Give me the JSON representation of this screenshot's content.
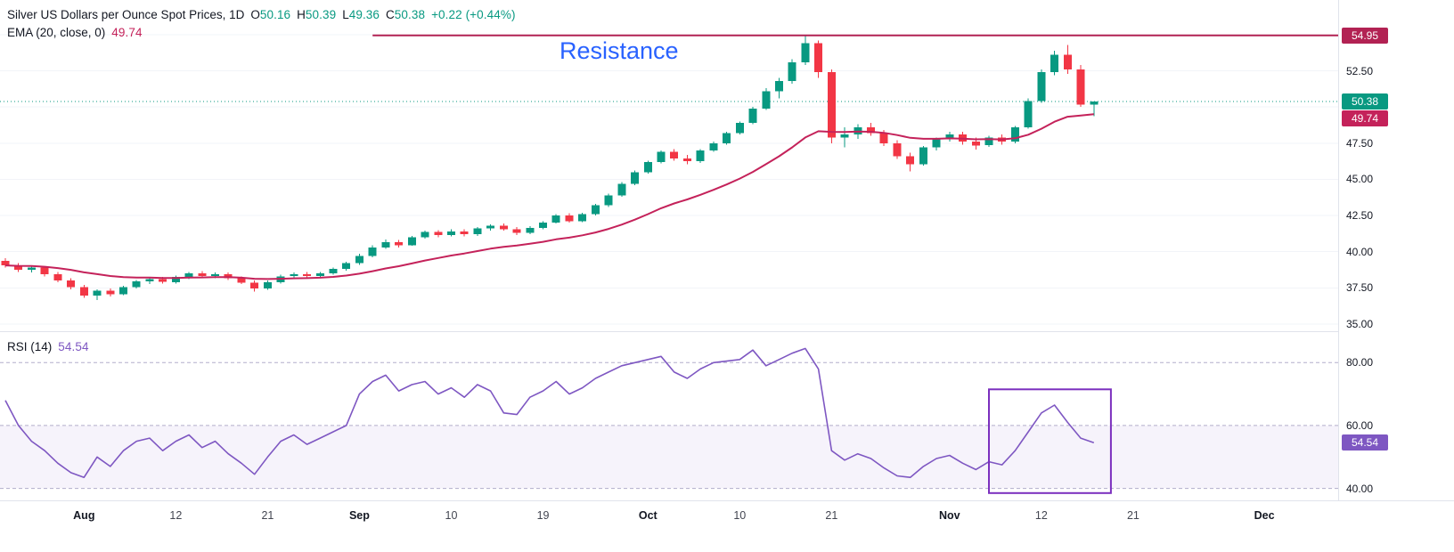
{
  "legend": {
    "title": "Silver US Dollars per Ounce Spot Prices, 1D",
    "ohlc": {
      "o_key": "O",
      "o": "50.16",
      "h_key": "H",
      "h": "50.39",
      "l_key": "L",
      "l": "49.36",
      "c_key": "C",
      "c": "50.38",
      "change": "+0.22 (+0.44%)"
    },
    "ema_label": "EMA (20, close, 0)",
    "ema_value": "49.74",
    "rsi_label": "RSI (14)",
    "rsi_value": "54.54"
  },
  "colors": {
    "up": "#089981",
    "down": "#f23645",
    "ema": "#c4225a",
    "resistance_line": "#b22253",
    "resistance_text": "#2962ff",
    "last_price": "#089981",
    "rsi": "#7e57c2",
    "rsi_band": "rgba(126,87,194,0.07)",
    "rsi_level": "#b2aecb",
    "box": "#7b2fbe",
    "grid": "#f2f4f8",
    "axis_text": "#131722"
  },
  "chart_data": {
    "type": "candlestick",
    "title": "Silver US Dollars per Ounce Spot Prices, 1D",
    "timeframe": "1D",
    "price_panel": {
      "ylim": [
        34.5,
        57.4
      ],
      "grid_values": [
        35,
        37.5,
        40,
        42.5,
        45,
        47.5,
        50,
        52.5,
        55
      ],
      "axis_labels": [
        "52.50",
        "47.50",
        "45.00",
        "42.50",
        "40.00",
        "37.50",
        "35.00"
      ],
      "badges": [
        {
          "label": "54.95",
          "value": 54.95,
          "color": "#b22253"
        },
        {
          "label": "50.38",
          "value": 50.38,
          "color": "#089981"
        },
        {
          "label": "49.74",
          "value": 49.74,
          "color": "#c4225a"
        }
      ],
      "last_price": {
        "value": 50.38
      },
      "ema": {
        "period": 20,
        "source": "close",
        "offset": 0,
        "value": 49.74
      },
      "resistance": {
        "label": "Resistance",
        "value": 54.95,
        "start_index": 28
      },
      "candles": [
        [
          39.35,
          39.55,
          38.9,
          39.05
        ],
        [
          39.05,
          39.2,
          38.6,
          38.75
        ],
        [
          38.75,
          39.0,
          38.55,
          38.9
        ],
        [
          38.9,
          39.0,
          38.3,
          38.45
        ],
        [
          38.45,
          38.6,
          37.9,
          38.0
        ],
        [
          38.0,
          38.15,
          37.4,
          37.55
        ],
        [
          37.55,
          37.7,
          36.8,
          36.95
        ],
        [
          36.95,
          37.4,
          36.65,
          37.3
        ],
        [
          37.3,
          37.45,
          36.9,
          37.05
        ],
        [
          37.05,
          37.65,
          37.0,
          37.55
        ],
        [
          37.55,
          38.05,
          37.45,
          37.95
        ],
        [
          37.95,
          38.25,
          37.75,
          38.1
        ],
        [
          38.1,
          38.25,
          37.8,
          37.9
        ],
        [
          37.9,
          38.35,
          37.8,
          38.25
        ],
        [
          38.25,
          38.6,
          38.1,
          38.5
        ],
        [
          38.5,
          38.65,
          38.2,
          38.3
        ],
        [
          38.3,
          38.55,
          38.15,
          38.45
        ],
        [
          38.45,
          38.55,
          38.05,
          38.15
        ],
        [
          38.15,
          38.3,
          37.75,
          37.85
        ],
        [
          37.85,
          38.0,
          37.25,
          37.45
        ],
        [
          37.45,
          38.0,
          37.35,
          37.9
        ],
        [
          37.9,
          38.4,
          37.8,
          38.3
        ],
        [
          38.3,
          38.55,
          38.15,
          38.45
        ],
        [
          38.45,
          38.6,
          38.2,
          38.3
        ],
        [
          38.3,
          38.6,
          38.2,
          38.5
        ],
        [
          38.5,
          38.9,
          38.4,
          38.8
        ],
        [
          38.8,
          39.3,
          38.7,
          39.2
        ],
        [
          39.2,
          39.85,
          39.1,
          39.7
        ],
        [
          39.7,
          40.45,
          39.6,
          40.3
        ],
        [
          40.3,
          40.85,
          40.2,
          40.65
        ],
        [
          40.65,
          40.8,
          40.3,
          40.45
        ],
        [
          40.45,
          41.1,
          40.4,
          41.0
        ],
        [
          41.0,
          41.45,
          40.9,
          41.35
        ],
        [
          41.35,
          41.5,
          41.0,
          41.15
        ],
        [
          41.15,
          41.55,
          41.05,
          41.4
        ],
        [
          41.4,
          41.55,
          41.05,
          41.2
        ],
        [
          41.2,
          41.7,
          41.1,
          41.6
        ],
        [
          41.6,
          41.9,
          41.45,
          41.8
        ],
        [
          41.8,
          41.95,
          41.45,
          41.55
        ],
        [
          41.55,
          41.7,
          41.15,
          41.3
        ],
        [
          41.3,
          41.75,
          41.2,
          41.65
        ],
        [
          41.65,
          42.1,
          41.55,
          42.0
        ],
        [
          42.0,
          42.6,
          41.95,
          42.5
        ],
        [
          42.5,
          42.65,
          42.0,
          42.1
        ],
        [
          42.1,
          42.7,
          42.05,
          42.6
        ],
        [
          42.6,
          43.3,
          42.5,
          43.2
        ],
        [
          43.2,
          44.0,
          43.1,
          43.9
        ],
        [
          43.9,
          44.8,
          43.8,
          44.7
        ],
        [
          44.7,
          45.6,
          44.6,
          45.5
        ],
        [
          45.5,
          46.3,
          45.4,
          46.2
        ],
        [
          46.2,
          47.0,
          46.1,
          46.9
        ],
        [
          46.9,
          47.1,
          46.3,
          46.45
        ],
        [
          46.45,
          46.7,
          46.05,
          46.25
        ],
        [
          46.25,
          47.1,
          46.15,
          47.0
        ],
        [
          47.0,
          47.6,
          46.9,
          47.5
        ],
        [
          47.5,
          48.3,
          47.4,
          48.2
        ],
        [
          48.2,
          49.0,
          48.1,
          48.9
        ],
        [
          48.9,
          50.0,
          48.8,
          49.9
        ],
        [
          49.9,
          51.3,
          49.8,
          51.1
        ],
        [
          51.1,
          52.0,
          50.6,
          51.8
        ],
        [
          51.8,
          53.3,
          51.6,
          53.1
        ],
        [
          53.1,
          54.9,
          52.9,
          54.4
        ],
        [
          54.4,
          54.6,
          52.0,
          52.4
        ],
        [
          52.4,
          52.6,
          47.5,
          47.9
        ],
        [
          47.9,
          48.6,
          47.2,
          48.1
        ],
        [
          48.1,
          48.8,
          47.8,
          48.6
        ],
        [
          48.6,
          48.9,
          48.0,
          48.2
        ],
        [
          48.2,
          48.4,
          47.3,
          47.5
        ],
        [
          47.5,
          47.7,
          46.4,
          46.6
        ],
        [
          46.6,
          46.85,
          45.55,
          46.05
        ],
        [
          46.05,
          47.3,
          45.95,
          47.2
        ],
        [
          47.2,
          47.9,
          47.0,
          47.8
        ],
        [
          47.8,
          48.3,
          47.6,
          48.1
        ],
        [
          48.1,
          48.3,
          47.4,
          47.6
        ],
        [
          47.6,
          47.9,
          47.05,
          47.35
        ],
        [
          47.35,
          48.0,
          47.25,
          47.9
        ],
        [
          47.9,
          48.1,
          47.4,
          47.6
        ],
        [
          47.6,
          48.7,
          47.5,
          48.6
        ],
        [
          48.6,
          50.6,
          48.5,
          50.4
        ],
        [
          50.4,
          52.6,
          50.3,
          52.4
        ],
        [
          52.4,
          53.9,
          52.2,
          53.6
        ],
        [
          53.6,
          54.3,
          52.3,
          52.6
        ],
        [
          52.6,
          52.9,
          50.0,
          50.16
        ],
        [
          50.16,
          50.39,
          49.36,
          50.38
        ]
      ]
    },
    "rsi_panel": {
      "label": "RSI (14)",
      "period": 14,
      "value": 54.54,
      "ylim": [
        36.2,
        90
      ],
      "levels": [
        80,
        60,
        40
      ],
      "band": [
        40,
        60
      ],
      "axis_labels": [
        "80.00",
        "60.00",
        "40.00"
      ],
      "badge": {
        "label": "54.54",
        "value": 54.54,
        "color": "#7e57c2"
      },
      "box": {
        "start_index": 75,
        "end_index": 84.3,
        "top": 71.5,
        "bottom": 38.5
      },
      "values": [
        68,
        60,
        55,
        52,
        48,
        45,
        43.5,
        50,
        47,
        52,
        55,
        56,
        52,
        55,
        57,
        53,
        55,
        51,
        48,
        44.5,
        50,
        55,
        57,
        54,
        56,
        58,
        60,
        70,
        74,
        76,
        71,
        73,
        74,
        70,
        72,
        69,
        73,
        71,
        64,
        63.5,
        69,
        71,
        74,
        70,
        72,
        75,
        77,
        79,
        80,
        81,
        82,
        77,
        75,
        78,
        80,
        80.5,
        81,
        84,
        79,
        81,
        83,
        84.5,
        78,
        52,
        49,
        51,
        49.5,
        46.5,
        44,
        43.5,
        47,
        49.5,
        50.5,
        48,
        46,
        48.5,
        47.5,
        52,
        58,
        64,
        66.5,
        61,
        56,
        54.54
      ]
    },
    "time_axis": {
      "ticks": [
        {
          "label": "Aug",
          "index": 6,
          "major": true
        },
        {
          "label": "12",
          "index": 13,
          "major": false
        },
        {
          "label": "21",
          "index": 20,
          "major": false
        },
        {
          "label": "Sep",
          "index": 27,
          "major": true
        },
        {
          "label": "10",
          "index": 34,
          "major": false
        },
        {
          "label": "19",
          "index": 41,
          "major": false
        },
        {
          "label": "Oct",
          "index": 49,
          "major": true
        },
        {
          "label": "10",
          "index": 56,
          "major": false
        },
        {
          "label": "21",
          "index": 63,
          "major": false
        },
        {
          "label": "Nov",
          "index": 72,
          "major": true
        },
        {
          "label": "12",
          "index": 79,
          "major": false
        },
        {
          "label": "21",
          "index": 86,
          "major": false
        },
        {
          "label": "Dec",
          "index": 96,
          "major": true
        }
      ]
    }
  }
}
